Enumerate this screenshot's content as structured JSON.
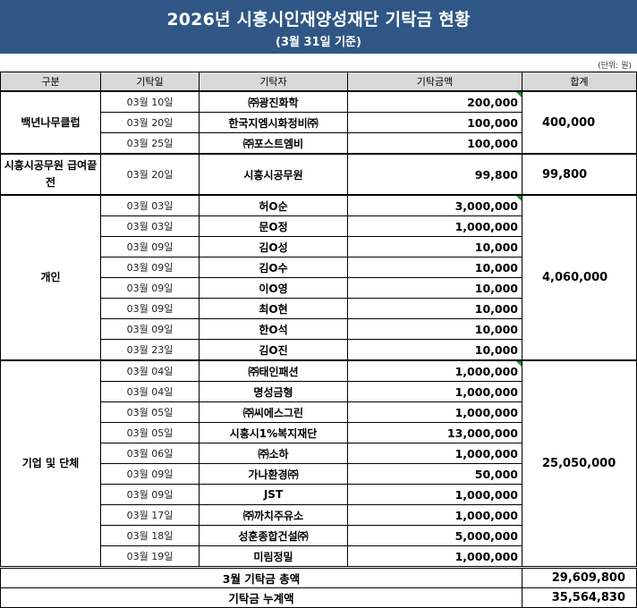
{
  "title": "2026년 시흥시인재양성재단 기탁금 현황",
  "subtitle": "(3월 31일 기준)",
  "unit_note": "(단위: 원)",
  "headers": {
    "category": "구분",
    "date": "기탁일",
    "donor": "기탁자",
    "amount": "기탁금액",
    "total": "합계"
  },
  "groups": [
    {
      "name": "백년나무클럽",
      "subtotal": "400,000",
      "rows": [
        {
          "date": "03월 10일",
          "donor": "㈜광진화학",
          "amount": "200,000"
        },
        {
          "date": "03월 20일",
          "donor": "한국지엠시화정비㈜",
          "amount": "100,000"
        },
        {
          "date": "03월 25일",
          "donor": "㈜포스트엠비",
          "amount": "100,000"
        }
      ]
    },
    {
      "name": "시흥시공무원 급여끝전",
      "subtotal": "99,800",
      "rows": [
        {
          "date": "03월 20일",
          "donor": "시흥시공무원",
          "amount": "99,800"
        }
      ]
    },
    {
      "name": "개인",
      "subtotal": "4,060,000",
      "rows": [
        {
          "date": "03월 03일",
          "donor": "허O순",
          "amount": "3,000,000"
        },
        {
          "date": "03월 03일",
          "donor": "문O정",
          "amount": "1,000,000"
        },
        {
          "date": "03월 09일",
          "donor": "김O성",
          "amount": "10,000"
        },
        {
          "date": "03월 09일",
          "donor": "김O수",
          "amount": "10,000"
        },
        {
          "date": "03월 09일",
          "donor": "이O영",
          "amount": "10,000"
        },
        {
          "date": "03월 09일",
          "donor": "최O현",
          "amount": "10,000"
        },
        {
          "date": "03월 09일",
          "donor": "한O석",
          "amount": "10,000"
        },
        {
          "date": "03월 23일",
          "donor": "김O진",
          "amount": "10,000"
        }
      ]
    },
    {
      "name": "기업 및 단체",
      "subtotal": "25,050,000",
      "rows": [
        {
          "date": "03월 04일",
          "donor": "㈜태인패션",
          "amount": "1,000,000"
        },
        {
          "date": "03월 04일",
          "donor": "명성금형",
          "amount": "1,000,000"
        },
        {
          "date": "03월 05일",
          "donor": "㈜씨에스그린",
          "amount": "1,000,000"
        },
        {
          "date": "03월 05일",
          "donor": "시흥시1%복지재단",
          "amount": "13,000,000"
        },
        {
          "date": "03월 06일",
          "donor": "㈜소하",
          "amount": "1,000,000"
        },
        {
          "date": "03월 09일",
          "donor": "가나환경㈜",
          "amount": "50,000"
        },
        {
          "date": "03월 09일",
          "donor": "JST",
          "amount": "1,000,000"
        },
        {
          "date": "03월 17일",
          "donor": "㈜까치주유소",
          "amount": "1,000,000"
        },
        {
          "date": "03월 18일",
          "donor": "성훈종합건설㈜",
          "amount": "5,000,000"
        },
        {
          "date": "03월 19일",
          "donor": "미림정밀",
          "amount": "1,000,000"
        }
      ]
    }
  ],
  "totals": [
    {
      "label": "3월 기탁금 총액",
      "value": "29,609,800"
    },
    {
      "label": "기탁금 누계액",
      "value": "35,564,830"
    }
  ],
  "colors": {
    "title_bg": "#2f5685",
    "header_bg": "#d9d9d9",
    "comment_marker": "#1f8a2c"
  }
}
